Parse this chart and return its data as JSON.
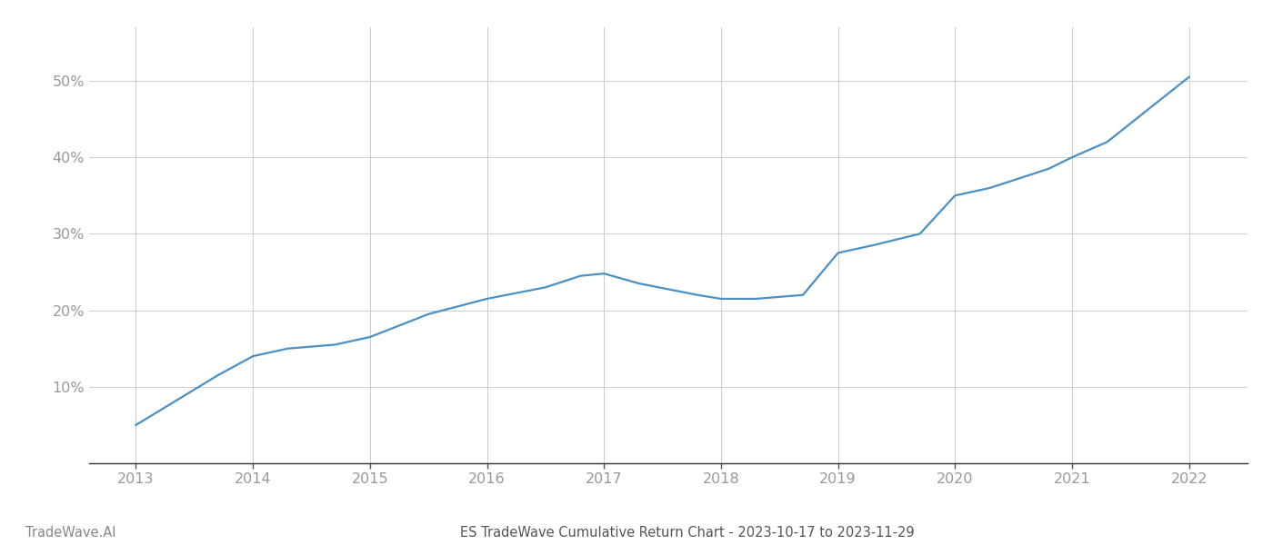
{
  "x_years": [
    2013,
    2013.7,
    2014.0,
    2014.3,
    2014.7,
    2015.0,
    2015.5,
    2016.0,
    2016.5,
    2016.8,
    2017.0,
    2017.3,
    2017.8,
    2018.0,
    2018.3,
    2018.7,
    2019.0,
    2019.3,
    2019.7,
    2020.0,
    2020.3,
    2020.8,
    2021.0,
    2021.3,
    2022.0
  ],
  "y_values": [
    5.0,
    11.5,
    14.0,
    15.0,
    15.5,
    16.5,
    19.5,
    21.5,
    23.0,
    24.5,
    24.8,
    23.5,
    22.0,
    21.5,
    21.5,
    22.0,
    27.5,
    28.5,
    30.0,
    35.0,
    36.0,
    38.5,
    40.0,
    42.0,
    50.5
  ],
  "line_color": "#4a90c4",
  "line_width": 1.6,
  "background_color": "#ffffff",
  "grid_color": "#cccccc",
  "title": "ES TradeWave Cumulative Return Chart - 2023-10-17 to 2023-11-29",
  "watermark": "TradeWave.AI",
  "xlim": [
    2012.6,
    2022.5
  ],
  "ylim": [
    0,
    57
  ],
  "yticks": [
    10,
    20,
    30,
    40,
    50
  ],
  "xticks": [
    2013,
    2014,
    2015,
    2016,
    2017,
    2018,
    2019,
    2020,
    2021,
    2022
  ],
  "tick_color": "#999999",
  "title_color": "#555555",
  "watermark_color": "#888888",
  "title_fontsize": 10.5,
  "watermark_fontsize": 10.5,
  "tick_fontsize": 11.5
}
